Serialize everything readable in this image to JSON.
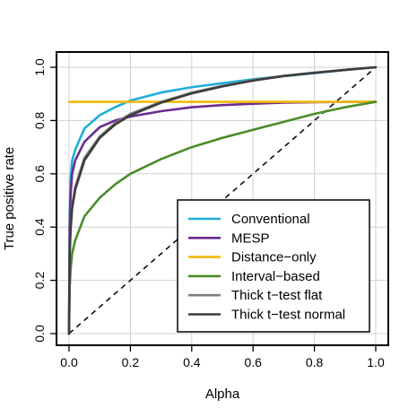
{
  "chart_data": {
    "type": "line",
    "title": "",
    "xlabel": "Alpha",
    "ylabel": "True positive rate",
    "xlim": [
      0,
      1
    ],
    "ylim": [
      0,
      1
    ],
    "xticks": [
      "0.0",
      "0.2",
      "0.4",
      "0.6",
      "0.8",
      "1.0"
    ],
    "yticks": [
      "0.0",
      "0.2",
      "0.4",
      "0.6",
      "0.8",
      "1.0"
    ],
    "grid": true,
    "legend_position": "bottom-right",
    "diagonal_reference": true,
    "series": [
      {
        "name": "Conventional",
        "color": "#1EAEDB",
        "x": [
          0,
          0.002,
          0.005,
          0.01,
          0.02,
          0.05,
          0.1,
          0.15,
          0.2,
          0.3,
          0.4,
          0.5,
          0.6,
          0.7,
          0.8,
          0.9,
          1.0
        ],
        "y": [
          0,
          0.45,
          0.58,
          0.65,
          0.69,
          0.77,
          0.82,
          0.85,
          0.875,
          0.905,
          0.925,
          0.94,
          0.955,
          0.967,
          0.978,
          0.99,
          1.0
        ]
      },
      {
        "name": "MESP",
        "color": "#6A2C91",
        "x": [
          0,
          0.002,
          0.005,
          0.01,
          0.02,
          0.05,
          0.1,
          0.15,
          0.2,
          0.3,
          0.4,
          0.5,
          0.6,
          0.7,
          0.8,
          0.9,
          1.0
        ],
        "y": [
          0,
          0.4,
          0.52,
          0.6,
          0.65,
          0.72,
          0.775,
          0.8,
          0.815,
          0.835,
          0.85,
          0.858,
          0.863,
          0.867,
          0.869,
          0.87,
          0.87
        ]
      },
      {
        "name": "Distance−only",
        "color": "#F2B90C",
        "x": [
          0,
          1.0
        ],
        "y": [
          0.87,
          0.87
        ]
      },
      {
        "name": "Interval−based",
        "color": "#4A8C2A",
        "x": [
          0,
          0.002,
          0.005,
          0.01,
          0.02,
          0.05,
          0.1,
          0.15,
          0.2,
          0.3,
          0.4,
          0.5,
          0.6,
          0.7,
          0.8,
          0.9,
          1.0
        ],
        "y": [
          0,
          0.17,
          0.24,
          0.3,
          0.35,
          0.44,
          0.51,
          0.56,
          0.6,
          0.655,
          0.7,
          0.735,
          0.765,
          0.795,
          0.825,
          0.85,
          0.87
        ]
      },
      {
        "name": "Thick t−test flat",
        "color": "#808080",
        "x": [
          0,
          0.002,
          0.005,
          0.01,
          0.02,
          0.05,
          0.1,
          0.15,
          0.2,
          0.3,
          0.4,
          0.5,
          0.6,
          0.7,
          0.8,
          0.9,
          1.0
        ],
        "y": [
          0,
          0.3,
          0.4,
          0.48,
          0.55,
          0.66,
          0.74,
          0.79,
          0.825,
          0.87,
          0.905,
          0.93,
          0.952,
          0.968,
          0.98,
          0.99,
          1.0
        ]
      },
      {
        "name": "Thick t−test normal",
        "color": "#3C3C3C",
        "x": [
          0,
          0.002,
          0.005,
          0.01,
          0.02,
          0.05,
          0.1,
          0.15,
          0.2,
          0.3,
          0.4,
          0.5,
          0.6,
          0.7,
          0.8,
          0.9,
          1.0
        ],
        "y": [
          0,
          0.29,
          0.39,
          0.47,
          0.54,
          0.65,
          0.735,
          0.785,
          0.82,
          0.867,
          0.902,
          0.928,
          0.95,
          0.967,
          0.979,
          0.99,
          1.0
        ]
      }
    ]
  }
}
